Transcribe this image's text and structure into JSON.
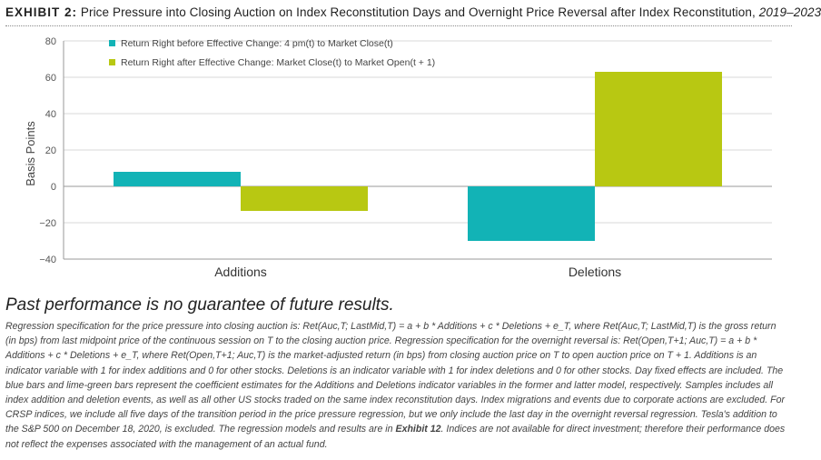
{
  "header": {
    "exhibit_label": "EXHIBIT 2:",
    "title": "Price Pressure into Closing Auction on Index Reconstitution Days and Overnight Price Reversal after Index Reconstitution,",
    "years": "2019–2023"
  },
  "colors": {
    "teal": "#12b3b6",
    "lime": "#b8c812",
    "axis": "#9a9a9a",
    "grid": "#d9d9d9"
  },
  "chart_data": {
    "type": "bar",
    "categories": [
      "Additions",
      "Deletions"
    ],
    "series": [
      {
        "name": "Return Right before Effective Change: 4 pm(t) to Market Close(t)",
        "color": "#12b3b6",
        "values": [
          8,
          -30
        ]
      },
      {
        "name": "Return Right after Effective Change: Market Close(t) to Market Open(t + 1)",
        "color": "#b8c812",
        "values": [
          -13.5,
          63
        ]
      }
    ],
    "ylabel": "Basis Points",
    "ylim": [
      -40,
      80
    ],
    "yticks": [
      "80",
      "60",
      "40",
      "20",
      "0",
      "−20",
      "−40"
    ],
    "ytick_values": [
      80,
      60,
      40,
      20,
      0,
      -20,
      -40
    ],
    "legend_position": "top-left"
  },
  "footer": {
    "heading": "Past performance is no guarantee of future results.",
    "notes": [
      "Regression specification for the price pressure into closing auction is: Ret(Auc,T; LastMid,T) = a + b * Additions + c * Deletions + e_T, where Ret(Auc,T; LastMid,T) is the gross return (in bps) from last midpoint price of the continuous session on T to the closing auction price. Regression specification for the overnight reversal is: Ret(Open,T+1; Auc,T) = a + b * Additions + c * Deletions + e_T, where Ret(Open,T+1; Auc,T) is the market-adjusted return (in bps) from closing auction price on T to open auction price on T + 1. Additions is an indicator variable with 1 for index additions and 0 for other stocks. Deletions is an indicator variable with 1 for index deletions and 0 for other stocks. Day fixed effects are included. The blue bars and lime-green bars represent the coefficient estimates for the Additions and Deletions indicator variables in the former and latter model, respectively. Samples includes all index addition and deletion events, as well as all other US stocks traded on the same index reconstitution days. Index migrations and events due to corporate actions are excluded. For CRSP indices, we include all five days of the transition period in the price pressure regression, but we only include the last day in the overnight reversal regression. Tesla's addition to the S&P 500 on December 18, 2020, is excluded. The regression models and results are in",
      "Exhibit 12",
      ". Indices are not available for direct investment; therefore their performance does not reflect the expenses associated with the management of an actual fund."
    ]
  }
}
